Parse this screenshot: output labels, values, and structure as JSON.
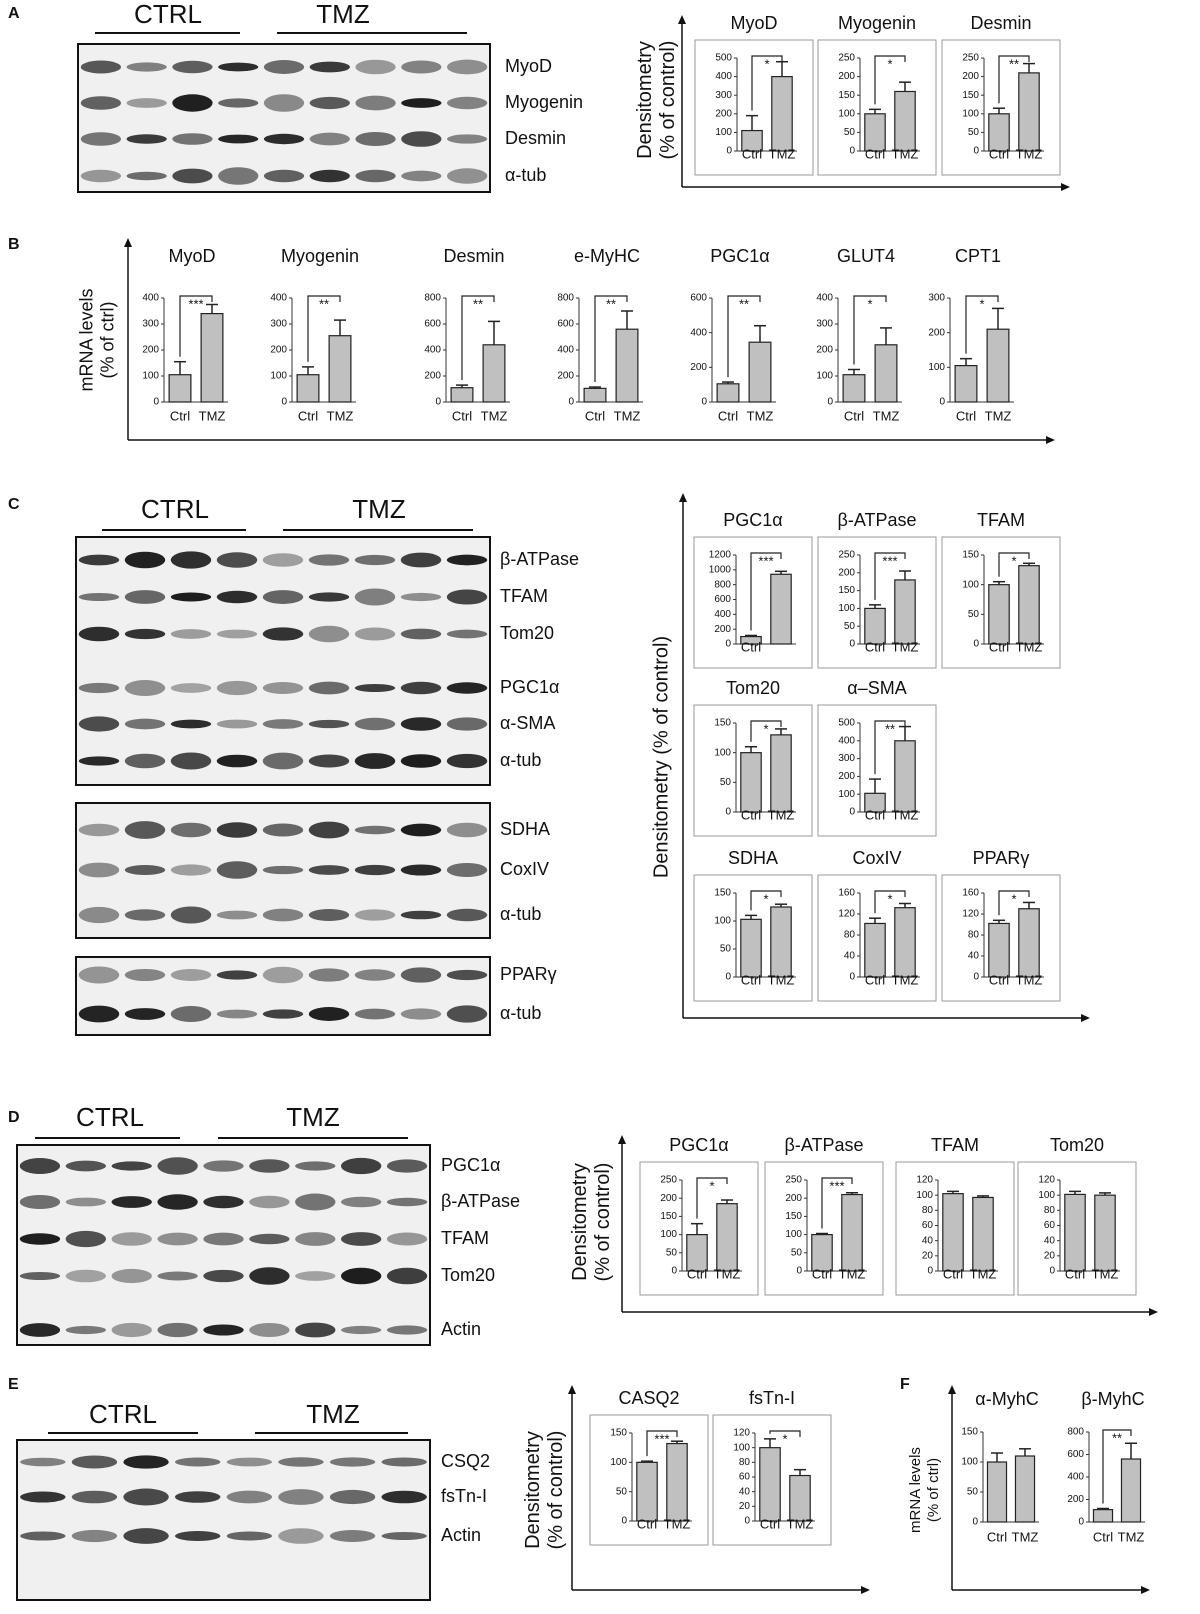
{
  "panels": [
    {
      "label": "A",
      "groups": [
        "CTRL",
        "TMZ"
      ],
      "blots": [
        [
          "MyoD",
          "Myogenin",
          "Desmin",
          "α-tub"
        ]
      ],
      "axis_label": [
        "Densitometry",
        "(% of control)"
      ],
      "charts": [
        {
          "type": "bar",
          "title": "MyoD",
          "categories": [
            "Ctrl",
            "TMZ"
          ],
          "values": [
            110,
            400
          ],
          "errors": [
            80,
            80
          ],
          "ylim": [
            0,
            500
          ],
          "yticks": [
            0,
            100,
            200,
            300,
            400,
            500
          ],
          "sig": "*"
        },
        {
          "type": "bar",
          "title": "Myogenin",
          "categories": [
            "Ctrl",
            "TMZ"
          ],
          "values": [
            100,
            160
          ],
          "errors": [
            12,
            25
          ],
          "ylim": [
            0,
            250
          ],
          "yticks": [
            0,
            50,
            100,
            150,
            200,
            250
          ],
          "sig": "*"
        },
        {
          "type": "bar",
          "title": "Desmin",
          "categories": [
            "Ctrl",
            "TMZ"
          ],
          "values": [
            100,
            210
          ],
          "errors": [
            15,
            25
          ],
          "ylim": [
            0,
            250
          ],
          "yticks": [
            0,
            50,
            100,
            150,
            200,
            250
          ],
          "sig": "**"
        }
      ]
    },
    {
      "label": "B",
      "groups": [],
      "blots": [],
      "axis_label": [
        "mRNA levels",
        "(% of ctrl)"
      ],
      "charts": [
        {
          "type": "bar",
          "title": "MyoD",
          "categories": [
            "Ctrl",
            "TMZ"
          ],
          "values": [
            105,
            340
          ],
          "errors": [
            50,
            35
          ],
          "ylim": [
            0,
            400
          ],
          "yticks": [
            0,
            100,
            200,
            300,
            400
          ],
          "sig": "***"
        },
        {
          "type": "bar",
          "title": "Myogenin",
          "categories": [
            "Ctrl",
            "TMZ"
          ],
          "values": [
            105,
            255
          ],
          "errors": [
            30,
            60
          ],
          "ylim": [
            0,
            400
          ],
          "yticks": [
            0,
            100,
            200,
            300,
            400
          ],
          "sig": "**"
        },
        {
          "type": "bar",
          "title": "Desmin",
          "categories": [
            "Ctrl",
            "TMZ"
          ],
          "values": [
            110,
            440
          ],
          "errors": [
            20,
            180
          ],
          "ylim": [
            0,
            800
          ],
          "yticks": [
            0,
            200,
            400,
            600,
            800
          ],
          "sig": "**"
        },
        {
          "type": "bar",
          "title": "e-MyHC",
          "categories": [
            "Ctrl",
            "TMZ"
          ],
          "values": [
            105,
            560
          ],
          "errors": [
            10,
            140
          ],
          "ylim": [
            0,
            800
          ],
          "yticks": [
            0,
            200,
            400,
            600,
            800
          ],
          "sig": "**"
        },
        {
          "type": "bar",
          "title": "PGC1α",
          "categories": [
            "Ctrl",
            "TMZ"
          ],
          "values": [
            105,
            345
          ],
          "errors": [
            10,
            95
          ],
          "ylim": [
            0,
            600
          ],
          "yticks": [
            0,
            200,
            400,
            600
          ],
          "sig": "**"
        },
        {
          "type": "bar",
          "title": "GLUT4",
          "categories": [
            "Ctrl",
            "TMZ"
          ],
          "values": [
            105,
            220
          ],
          "errors": [
            20,
            65
          ],
          "ylim": [
            0,
            400
          ],
          "yticks": [
            0,
            100,
            200,
            300,
            400
          ],
          "sig": "*"
        },
        {
          "type": "bar",
          "title": "CPT1",
          "categories": [
            "Ctrl",
            "TMZ"
          ],
          "values": [
            105,
            210
          ],
          "errors": [
            20,
            60
          ],
          "ylim": [
            0,
            300
          ],
          "yticks": [
            0,
            100,
            200,
            300
          ],
          "sig": "*"
        }
      ]
    },
    {
      "label": "C",
      "groups": [
        "CTRL",
        "TMZ"
      ],
      "blots": [
        [
          "β-ATPase",
          "TFAM",
          "Tom20",
          "PGC1α",
          "α-SMA",
          "α-tub"
        ],
        [
          "SDHA",
          "CoxIV",
          "α-tub"
        ],
        [
          "PPARγ",
          "α-tub"
        ]
      ],
      "axis_label": [
        "Densitometry (% of control)"
      ],
      "charts": [
        {
          "type": "bar",
          "title": "PGC1α",
          "categories": [
            "Ctrl",
            null
          ],
          "values": [
            100,
            940
          ],
          "errors": [
            15,
            40
          ],
          "ylim": [
            0,
            1200
          ],
          "yticks": [
            0,
            200,
            400,
            600,
            800,
            1000,
            1200
          ],
          "sig": "***"
        },
        {
          "type": "bar",
          "title": "β-ATPase",
          "categories": [
            "Ctrl",
            "TMZ"
          ],
          "values": [
            100,
            180
          ],
          "errors": [
            10,
            25
          ],
          "ylim": [
            0,
            250
          ],
          "yticks": [
            0,
            50,
            100,
            150,
            200,
            250
          ],
          "sig": "***"
        },
        {
          "type": "bar",
          "title": "TFAM",
          "categories": [
            "Ctrl",
            "TMZ"
          ],
          "values": [
            100,
            132
          ],
          "errors": [
            5,
            4
          ],
          "ylim": [
            0,
            150
          ],
          "yticks": [
            0,
            50,
            100,
            150
          ],
          "sig": "*"
        },
        {
          "type": "bar",
          "title": "Tom20",
          "categories": [
            "Ctrl",
            "TMZ"
          ],
          "values": [
            100,
            130
          ],
          "errors": [
            10,
            10
          ],
          "ylim": [
            0,
            150
          ],
          "yticks": [
            0,
            50,
            100,
            150
          ],
          "sig": "*"
        },
        {
          "type": "bar",
          "title": "α–SMA",
          "categories": [
            "Ctrl",
            "TMZ"
          ],
          "values": [
            105,
            400
          ],
          "errors": [
            80,
            80
          ],
          "ylim": [
            0,
            500
          ],
          "yticks": [
            0,
            100,
            200,
            300,
            400,
            500
          ],
          "sig": "**"
        },
        {
          "type": "bar",
          "title": "SDHA",
          "categories": [
            "Ctrl",
            "TMZ"
          ],
          "values": [
            103,
            125
          ],
          "errors": [
            7,
            5
          ],
          "ylim": [
            0,
            150
          ],
          "yticks": [
            0,
            50,
            100,
            150
          ],
          "sig": "*"
        },
        {
          "type": "bar",
          "title": "CoxIV",
          "categories": [
            "Ctrl",
            "TMZ"
          ],
          "values": [
            102,
            132
          ],
          "errors": [
            10,
            8
          ],
          "ylim": [
            0,
            160
          ],
          "yticks": [
            0,
            40,
            80,
            120,
            160
          ],
          "sig": "*"
        },
        {
          "type": "bar",
          "title": "PPARγ",
          "categories": [
            "Ctrl",
            "TMZ"
          ],
          "values": [
            102,
            130
          ],
          "errors": [
            6,
            12
          ],
          "ylim": [
            0,
            160
          ],
          "yticks": [
            0,
            40,
            80,
            120,
            160
          ],
          "sig": "*"
        }
      ]
    },
    {
      "label": "D",
      "groups": [
        "CTRL",
        "TMZ"
      ],
      "blots": [
        [
          "PGC1α",
          "β-ATPase",
          "TFAM",
          "Tom20",
          "Actin"
        ]
      ],
      "axis_label": [
        "Densitometry",
        "(% of control)"
      ],
      "charts": [
        {
          "type": "bar",
          "title": "PGC1α",
          "categories": [
            "Ctrl",
            "TMZ"
          ],
          "values": [
            100,
            185
          ],
          "errors": [
            30,
            10
          ],
          "ylim": [
            0,
            250
          ],
          "yticks": [
            0,
            50,
            100,
            150,
            200,
            250
          ],
          "sig": "*"
        },
        {
          "type": "bar",
          "title": "β-ATPase",
          "categories": [
            "Ctrl",
            "TMZ"
          ],
          "values": [
            100,
            210
          ],
          "errors": [
            3,
            5
          ],
          "ylim": [
            0,
            250
          ],
          "yticks": [
            0,
            50,
            100,
            150,
            200,
            250
          ],
          "sig": "***"
        },
        {
          "type": "bar",
          "title": "TFAM",
          "categories": [
            "Ctrl",
            "TMZ"
          ],
          "values": [
            102,
            97
          ],
          "errors": [
            3,
            2
          ],
          "ylim": [
            0,
            120
          ],
          "yticks": [
            0,
            20,
            40,
            60,
            80,
            100,
            120
          ]
        },
        {
          "type": "bar",
          "title": "Tom20",
          "categories": [
            "Ctrl",
            "TMZ"
          ],
          "values": [
            101,
            100
          ],
          "errors": [
            4,
            3
          ],
          "ylim": [
            0,
            120
          ],
          "yticks": [
            0,
            20,
            40,
            60,
            80,
            100,
            120
          ]
        }
      ]
    },
    {
      "label": "E",
      "groups": [
        "CTRL",
        "TMZ"
      ],
      "blots": [
        [
          "CSQ2",
          "fsTn-I",
          "Actin"
        ]
      ],
      "axis_label": [
        "Densitometry",
        "(% of control)"
      ],
      "charts": [
        {
          "type": "bar",
          "title": "CASQ2",
          "categories": [
            "Ctrl",
            "TMZ"
          ],
          "values": [
            100,
            132
          ],
          "errors": [
            2,
            4
          ],
          "ylim": [
            0,
            150
          ],
          "yticks": [
            0,
            50,
            100,
            150
          ],
          "sig": "***"
        },
        {
          "type": "bar",
          "title": "fsTn-I",
          "categories": [
            "Ctrl",
            "TMZ"
          ],
          "values": [
            100,
            62
          ],
          "errors": [
            12,
            8
          ],
          "ylim": [
            0,
            120
          ],
          "yticks": [
            0,
            20,
            40,
            60,
            80,
            100,
            120
          ],
          "sig": "*"
        }
      ]
    },
    {
      "label": "F",
      "groups": [],
      "blots": [],
      "axis_label": [
        "mRNA levels",
        "(% of ctrl)"
      ],
      "charts": [
        {
          "type": "bar",
          "title": "α-MyhC",
          "categories": [
            "Ctrl",
            "TMZ"
          ],
          "values": [
            100,
            110
          ],
          "errors": [
            15,
            12
          ],
          "ylim": [
            0,
            150
          ],
          "yticks": [
            0,
            50,
            100,
            150
          ]
        },
        {
          "type": "bar",
          "title": "β-MyhC",
          "categories": [
            "Ctrl",
            "TMZ"
          ],
          "values": [
            110,
            560
          ],
          "errors": [
            10,
            140
          ],
          "ylim": [
            0,
            800
          ],
          "yticks": [
            0,
            200,
            400,
            600,
            800
          ],
          "sig": "**"
        }
      ]
    }
  ]
}
